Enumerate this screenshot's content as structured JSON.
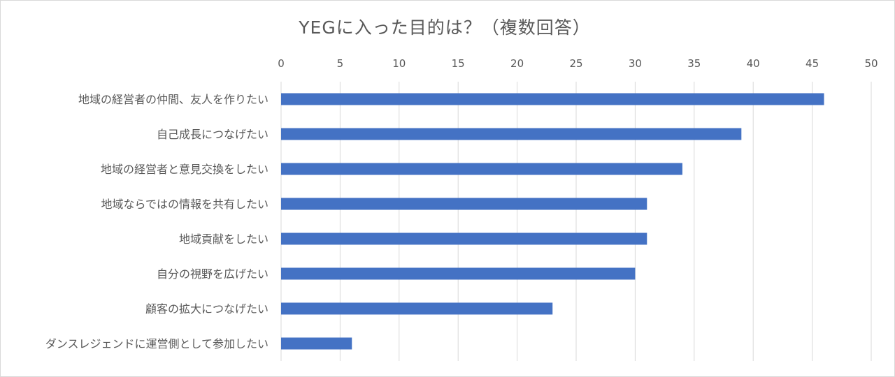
{
  "chart_data": {
    "type": "bar",
    "orientation": "horizontal",
    "title": "YEGに入った目的は？（複数回答）",
    "xlabel": "",
    "ylabel": "",
    "xlim": [
      0,
      50
    ],
    "x_ticks": [
      0,
      5,
      10,
      15,
      20,
      25,
      30,
      35,
      40,
      45,
      50
    ],
    "x_axis_position": "top",
    "grid": true,
    "legend": "none",
    "bar_color": "#4472c4",
    "categories": [
      "地域の経営者の仲間、友人を作りたい",
      "自己成長につなげたい",
      "地域の経営者と意見交換をしたい",
      "地域ならではの情報を共有したい",
      "地域貢献をしたい",
      "自分の視野を広げたい",
      "顧客の拡大につなげたい",
      "ダンスレジェンドに運営側として参加したい"
    ],
    "values": [
      46,
      39,
      34,
      31,
      31,
      30,
      23,
      6
    ]
  }
}
